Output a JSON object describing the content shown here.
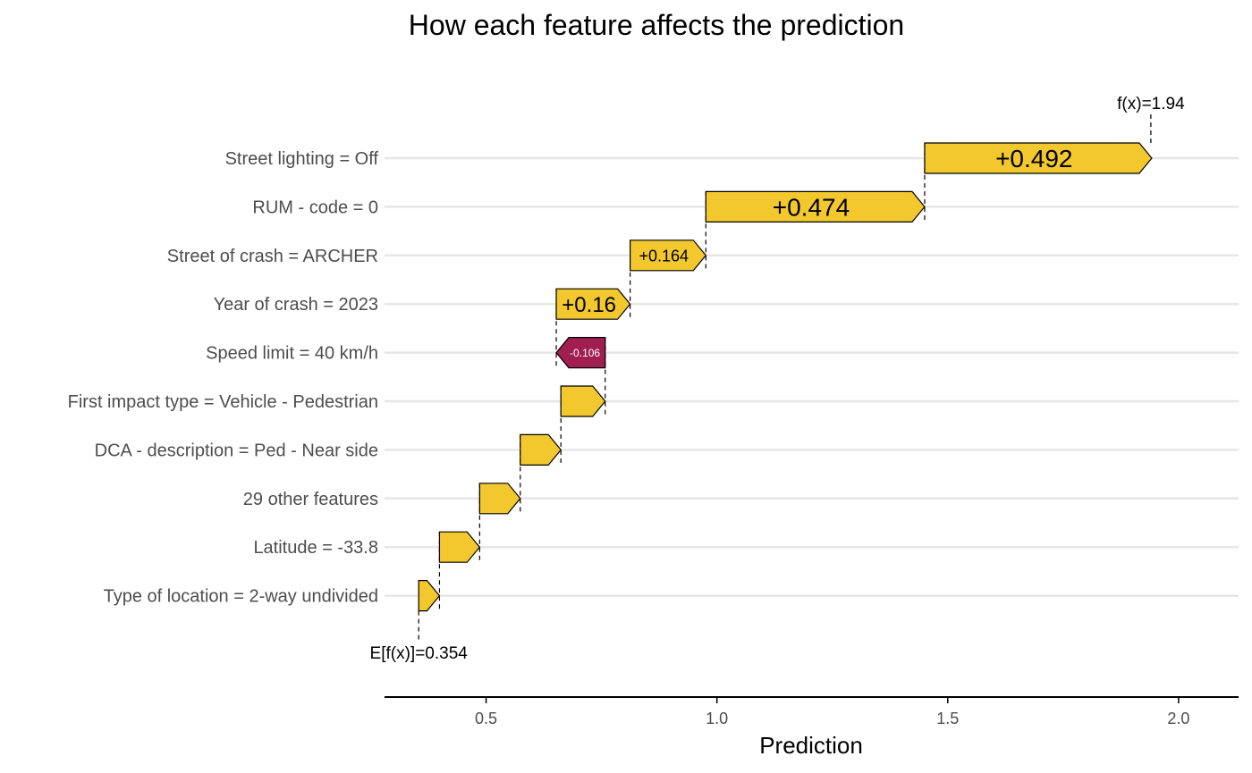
{
  "chart_data": {
    "type": "waterfall",
    "title": "How each feature affects the prediction",
    "xlabel": "Prediction",
    "xlim": [
      0.28,
      2.13
    ],
    "x_ticks": [
      0.5,
      1.0,
      1.5,
      2.0
    ],
    "x_tick_labels": [
      "0.5",
      "1.0",
      "1.5",
      "2.0"
    ],
    "base_value": 0.354,
    "base_label": "E[f(x)]=0.354",
    "final_value": 1.94,
    "final_label": "f(x)=1.94",
    "features": [
      {
        "name": "Street lighting = Off",
        "contribution": 0.492,
        "label": "+0.492"
      },
      {
        "name": "RUM - code = 0",
        "contribution": 0.474,
        "label": "+0.474"
      },
      {
        "name": "Street of crash = ARCHER",
        "contribution": 0.164,
        "label": "+0.164"
      },
      {
        "name": "Year of crash = 2023",
        "contribution": 0.16,
        "label": "+0.16"
      },
      {
        "name": "Speed limit = 40 km/h",
        "contribution": -0.106,
        "label": "-0.106"
      },
      {
        "name": "First impact type = Vehicle - Pedestrian",
        "contribution": 0.096,
        "label": ""
      },
      {
        "name": "DCA - description = Ped - Near side",
        "contribution": 0.088,
        "label": ""
      },
      {
        "name": "29 other features",
        "contribution": 0.088,
        "label": ""
      },
      {
        "name": "Latitude = -33.8",
        "contribution": 0.087,
        "label": ""
      },
      {
        "name": "Type of location = 2-way undivided",
        "contribution": 0.045,
        "label": ""
      }
    ],
    "colors": {
      "positive": "#F2C82E",
      "negative": "#A01E50",
      "grid": "#e6e6e6",
      "axis": "#000000"
    }
  }
}
